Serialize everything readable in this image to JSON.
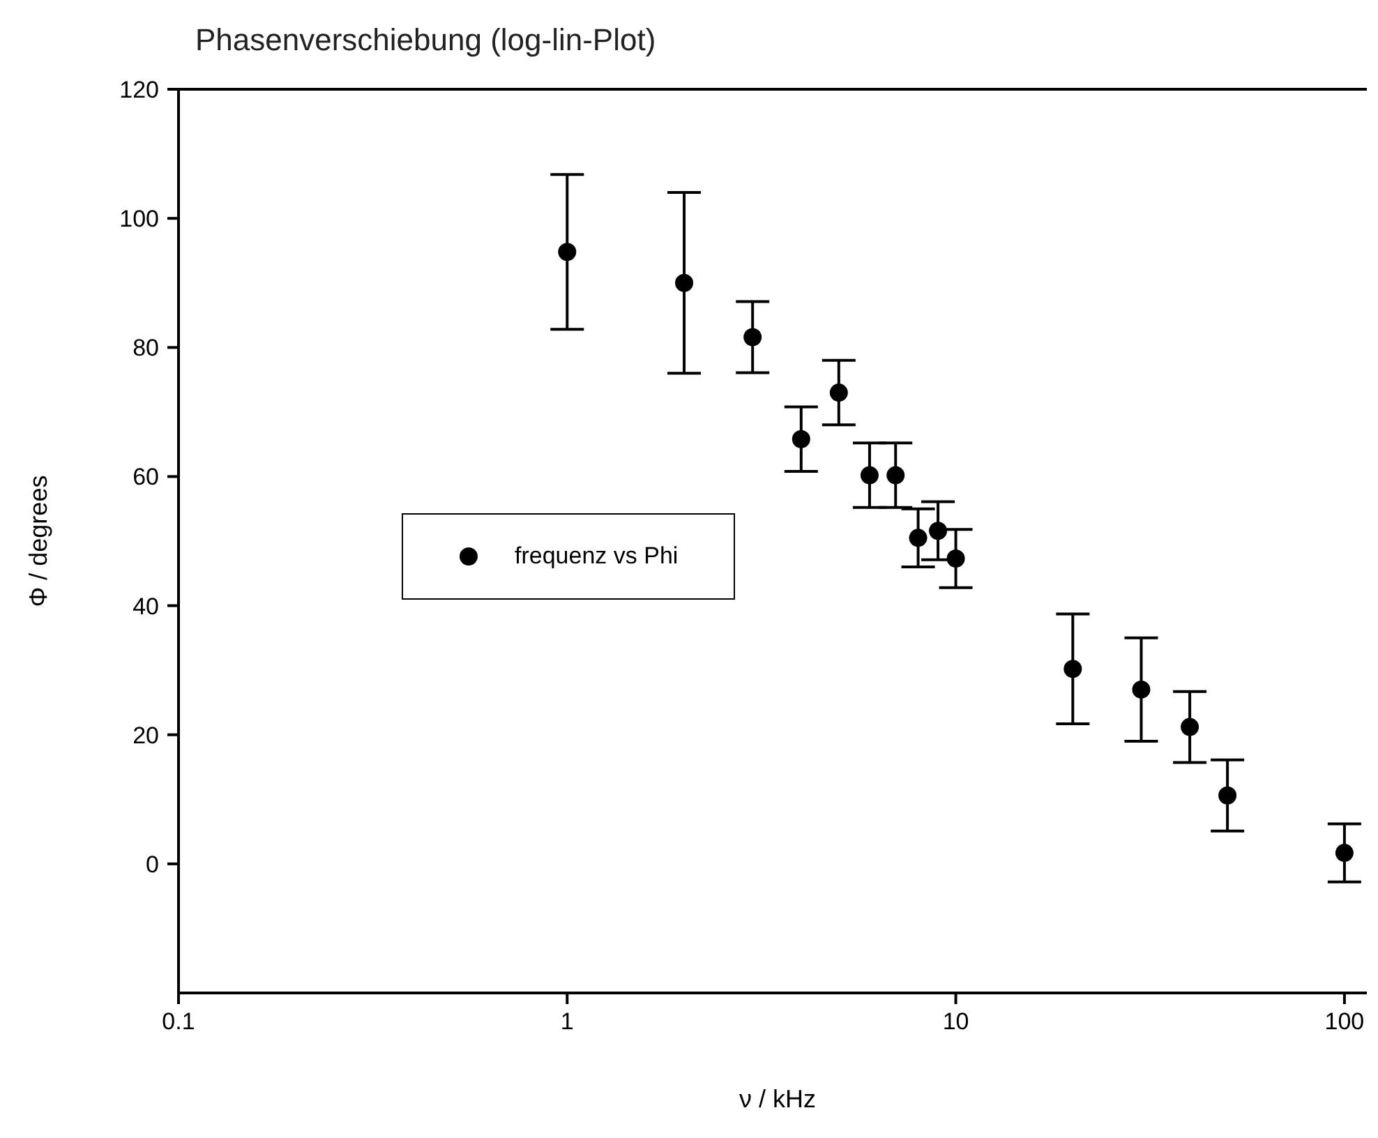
{
  "chart_data": {
    "type": "scatter",
    "title": "Phasenverschiebung (log-lin-Plot)",
    "xlabel": "ν / kHz",
    "ylabel": "Φ / degrees",
    "x": [
      1,
      2,
      3,
      4,
      5,
      6,
      7,
      8,
      9,
      10,
      20,
      30,
      40,
      50,
      100
    ],
    "series": [
      {
        "name": "frequenz vs Phi",
        "color": "#000000",
        "values": [
          94.8,
          90,
          81.6,
          65.8,
          73,
          60.2,
          60.2,
          50.5,
          51.6,
          47.3,
          30.2,
          27,
          21.2,
          10.6,
          1.7
        ],
        "errors": [
          12,
          14,
          5.5,
          5,
          5,
          5,
          5,
          4.5,
          4.5,
          4.5,
          8.5,
          8,
          5.5,
          5.5,
          4.5
        ]
      }
    ],
    "log": "x",
    "xlim": [
      0.1,
      120
    ],
    "xticks": [
      0.1,
      1,
      10,
      100
    ],
    "ylim": [
      -20,
      120
    ],
    "yticks": [
      0,
      20,
      40,
      60,
      80,
      100,
      120
    ],
    "marker": "circle",
    "legend": "left",
    "grid": false
  }
}
